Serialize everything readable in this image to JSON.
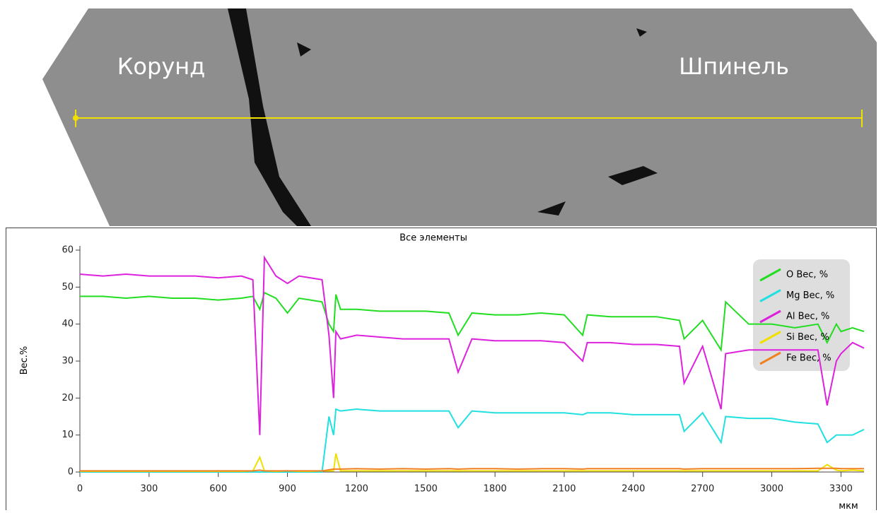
{
  "image": {
    "labels": [
      "Корунд",
      "Шпинель"
    ]
  },
  "chart_data": {
    "type": "line",
    "title": "Все элементы",
    "x_label": "мкм",
    "y_label": "Вес.%",
    "x": [
      0,
      100,
      200,
      300,
      400,
      500,
      600,
      700,
      750,
      780,
      800,
      850,
      900,
      950,
      1000,
      1050,
      1080,
      1100,
      1110,
      1130,
      1200,
      1300,
      1400,
      1500,
      1600,
      1640,
      1700,
      1800,
      1900,
      2000,
      2100,
      2180,
      2200,
      2300,
      2400,
      2500,
      2600,
      2620,
      2700,
      2780,
      2800,
      2900,
      3000,
      3100,
      3200,
      3240,
      3280,
      3300,
      3350,
      3400
    ],
    "series": [
      {
        "name": "O Вес, %",
        "color": "#22dd22",
        "values": [
          47.5,
          47.5,
          47,
          47.5,
          47,
          47,
          46.5,
          47,
          47.5,
          44,
          48.5,
          47,
          43,
          47,
          46.5,
          46,
          40,
          38,
          48,
          44,
          44,
          43.5,
          43.5,
          43.5,
          43,
          37,
          43,
          42.5,
          42.5,
          43,
          42.5,
          37,
          42.5,
          42,
          42,
          42,
          41,
          36,
          41,
          33,
          46,
          40,
          40,
          39,
          40,
          35,
          40,
          38,
          39,
          38
        ]
      },
      {
        "name": "Mg Вес, %",
        "color": "#22e0e0",
        "values": [
          0,
          0,
          0,
          0,
          0,
          0,
          0,
          0,
          0,
          0,
          0,
          0,
          0,
          0,
          0,
          0,
          15,
          10,
          17,
          16.5,
          17,
          16.5,
          16.5,
          16.5,
          16.5,
          12,
          16.5,
          16,
          16,
          16,
          16,
          15.5,
          16,
          16,
          15.5,
          15.5,
          15.5,
          11,
          16,
          8,
          15,
          14.5,
          14.5,
          13.5,
          13,
          8,
          10,
          10,
          10,
          11.5
        ]
      },
      {
        "name": "Al Вес, %",
        "color": "#dd22dd",
        "values": [
          53.5,
          53,
          53.5,
          53,
          53,
          53,
          52.5,
          53,
          52,
          10,
          58,
          53,
          51,
          53,
          52.5,
          52,
          37,
          20,
          38,
          36,
          37,
          36.5,
          36,
          36,
          36,
          27,
          36,
          35.5,
          35.5,
          35.5,
          35,
          30,
          35,
          35,
          34.5,
          34.5,
          34,
          24,
          34,
          17,
          32,
          33,
          33,
          33,
          33,
          18,
          30,
          32,
          35,
          33.5
        ]
      },
      {
        "name": "Si Вес, %",
        "color": "#f0e000",
        "values": [
          0.2,
          0.2,
          0.2,
          0.2,
          0.2,
          0.2,
          0.2,
          0.2,
          0.3,
          4,
          0.3,
          0.2,
          0.3,
          0.2,
          0.2,
          0.3,
          0.3,
          0.3,
          5,
          0.3,
          0.3,
          0.3,
          0.3,
          0.3,
          0.3,
          0.3,
          0.3,
          0.3,
          0.3,
          0.3,
          0.3,
          0.3,
          0.3,
          0.3,
          0.3,
          0.3,
          0.3,
          0.3,
          0.3,
          0.3,
          0.3,
          0.3,
          0.3,
          0.3,
          0.3,
          2,
          0.5,
          0.3,
          0.5,
          0.3
        ]
      },
      {
        "name": "Fe Вес, %",
        "color": "#f08020",
        "values": [
          0.3,
          0.3,
          0.3,
          0.3,
          0.3,
          0.3,
          0.3,
          0.3,
          0.3,
          0.5,
          0.3,
          0.3,
          0.3,
          0.3,
          0.3,
          0.3,
          0.6,
          0.8,
          0.8,
          0.8,
          0.9,
          0.8,
          0.9,
          0.8,
          0.9,
          0.8,
          0.9,
          0.9,
          0.8,
          0.9,
          0.9,
          0.8,
          0.9,
          0.9,
          0.9,
          0.9,
          0.9,
          0.8,
          0.9,
          0.9,
          0.9,
          0.9,
          0.9,
          0.9,
          1,
          1,
          1,
          0.9,
          0.9,
          0.9
        ]
      }
    ],
    "xlim": [
      0,
      3400
    ],
    "ylim": [
      0,
      60
    ],
    "xticks": [
      0,
      300,
      600,
      900,
      1200,
      1500,
      1800,
      2100,
      2400,
      2700,
      3000,
      3300
    ],
    "yticks": [
      0,
      10,
      20,
      30,
      40,
      50,
      60
    ],
    "legend": "upper right"
  }
}
